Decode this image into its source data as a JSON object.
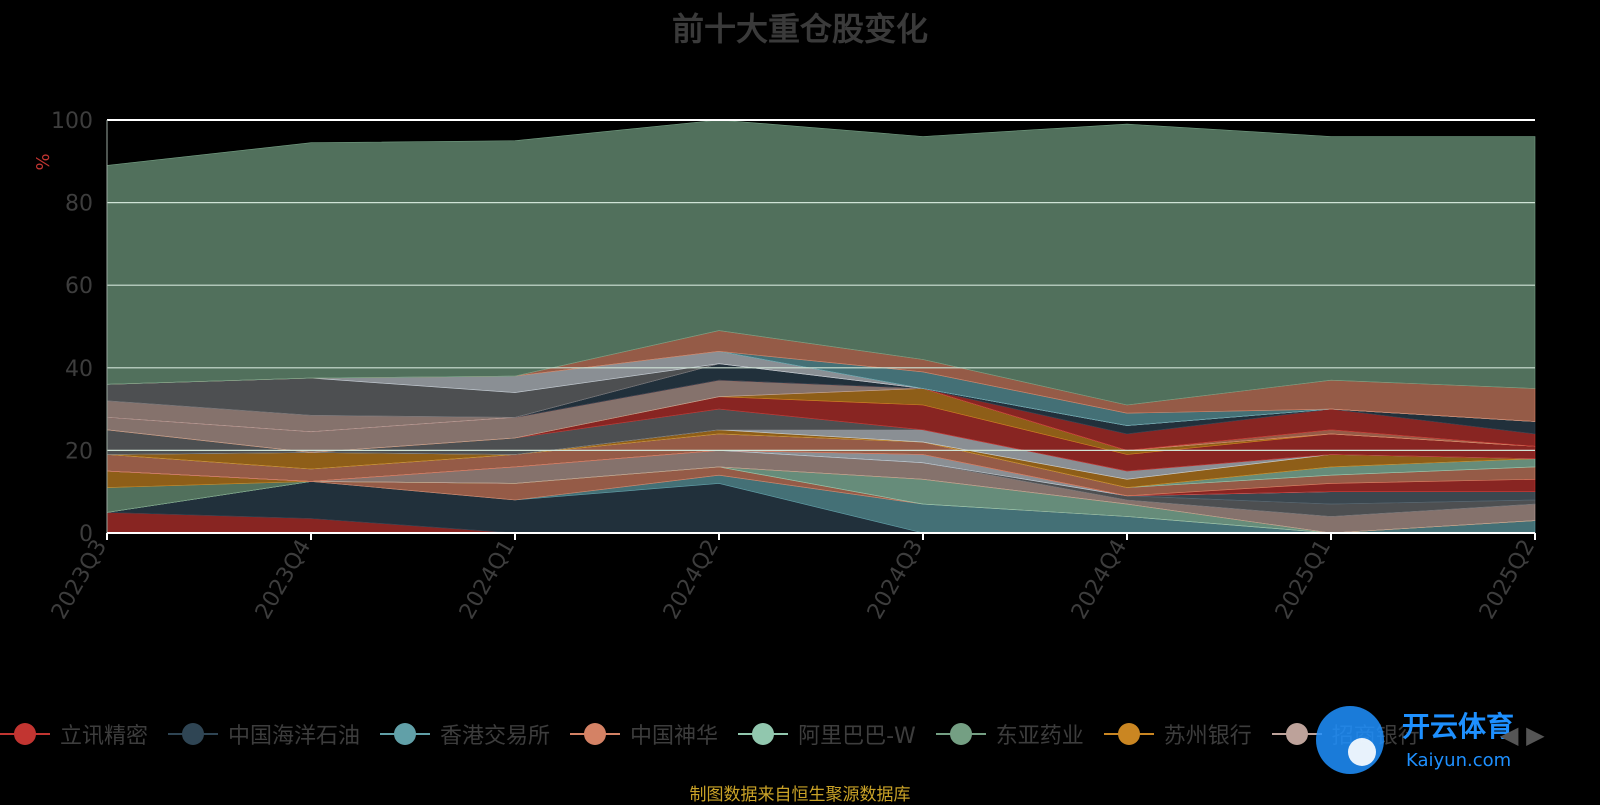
{
  "chart_data": {
    "type": "area",
    "stacked": true,
    "title": "前十大重仓股变化",
    "ylabel": "%",
    "ylim": [
      0,
      100
    ],
    "yticks": [
      0,
      20,
      40,
      60,
      80,
      100
    ],
    "grid": true,
    "legend_position": "bottom",
    "categories": [
      "2023Q3",
      "2023Q4",
      "2024Q1",
      "2024Q2",
      "2024Q3",
      "2024Q4",
      "2025Q1",
      "2025Q2"
    ],
    "series": [
      {
        "name": "立讯精密",
        "color": "#c23531",
        "values": [
          5,
          3.5,
          0,
          0,
          0,
          0,
          0,
          0
        ]
      },
      {
        "name": "中国海洋石油",
        "color": "#2f4554",
        "values": [
          0,
          9,
          8,
          12,
          0,
          0,
          0,
          0
        ]
      },
      {
        "name": "香港交易所",
        "color": "#61a0a8",
        "values": [
          0,
          0,
          0,
          2,
          7,
          4,
          0,
          3
        ]
      },
      {
        "name": "中国神华",
        "color": "#d48265",
        "values": [
          0,
          0,
          4,
          2,
          0,
          0,
          0,
          0
        ]
      },
      {
        "name": "阿里巴巴-W",
        "color": "#91c7ae",
        "values": [
          0,
          0,
          0,
          0,
          6,
          3,
          0,
          0
        ]
      },
      {
        "name": "东亚药业",
        "color": "#749f83",
        "values": [
          6,
          0,
          0,
          0,
          0,
          0,
          0,
          0
        ]
      },
      {
        "name": "苏州银行",
        "color": "#ca8622",
        "values": [
          4,
          0,
          0,
          0,
          0,
          0,
          0,
          0
        ]
      },
      {
        "name": "招商银行",
        "color": "#bda29a",
        "values": [
          0,
          0,
          4,
          4,
          4,
          1,
          4,
          4
        ]
      },
      {
        "name": "",
        "color": "#6e7074",
        "values": [
          0,
          0,
          0,
          0,
          0,
          1,
          3,
          1
        ]
      },
      {
        "name": "",
        "color": "#546570",
        "values": [
          0,
          0,
          0,
          0,
          0,
          0,
          3,
          2
        ]
      },
      {
        "name": "",
        "color": "#c4ccd3",
        "values": [
          0,
          0,
          0,
          0,
          2,
          0,
          0,
          0
        ]
      },
      {
        "name": "",
        "color": "#c23531",
        "values": [
          0,
          0,
          0,
          0,
          0,
          0,
          2,
          3
        ]
      },
      {
        "name": "",
        "color": "#d48265",
        "values": [
          4,
          3,
          3,
          4,
          3,
          2,
          2,
          3
        ]
      },
      {
        "name": "",
        "color": "#91c7ae",
        "values": [
          0,
          0,
          0,
          0,
          0,
          0,
          2,
          2
        ]
      },
      {
        "name": "",
        "color": "#ca8622",
        "values": [
          0,
          4,
          0,
          1,
          0,
          2,
          3,
          0
        ]
      },
      {
        "name": "",
        "color": "#c4ccd3",
        "values": [
          0,
          0,
          0,
          0,
          3,
          2,
          0,
          0
        ]
      },
      {
        "name": "",
        "color": "#6e7074",
        "values": [
          6,
          0,
          4,
          5,
          0,
          0,
          0,
          0
        ]
      },
      {
        "name": "",
        "color": "#c23531",
        "values": [
          0,
          0,
          0,
          3,
          6,
          4,
          5,
          3
        ]
      },
      {
        "name": "",
        "color": "#ca8622",
        "values": [
          0,
          0,
          0,
          0,
          4,
          1,
          0,
          0
        ]
      },
      {
        "name": "",
        "color": "#bda29a",
        "values": [
          3,
          5,
          5,
          4,
          0,
          0,
          0,
          0
        ]
      },
      {
        "name": "",
        "color": "#d48265",
        "values": [
          0,
          0,
          0,
          0,
          0,
          0,
          1,
          0
        ]
      },
      {
        "name": "",
        "color": "#c23531",
        "values": [
          0,
          0,
          0,
          0,
          0,
          4,
          5,
          3
        ]
      },
      {
        "name": "",
        "color": "#2f4554",
        "values": [
          0,
          0,
          0,
          4,
          0,
          2,
          0,
          3
        ]
      },
      {
        "name": "",
        "color": "#bda29a",
        "values": [
          4,
          4,
          0,
          0,
          0,
          0,
          0,
          0
        ]
      },
      {
        "name": "",
        "color": "#6e7074",
        "values": [
          4,
          9,
          6,
          0,
          0,
          0,
          0,
          0
        ]
      },
      {
        "name": "",
        "color": "#c4ccd3",
        "values": [
          0,
          0,
          4,
          3,
          0,
          0,
          0,
          0
        ]
      },
      {
        "name": "",
        "color": "#61a0a8",
        "values": [
          0,
          0,
          0,
          0,
          4,
          3,
          0,
          0
        ]
      },
      {
        "name": "",
        "color": "#d48265",
        "values": [
          0,
          0,
          0,
          5,
          3,
          2,
          7,
          8
        ]
      },
      {
        "name": "",
        "color": "#749f83",
        "values": [
          53,
          57,
          57,
          51,
          54,
          68,
          59,
          61
        ]
      }
    ],
    "source_note": "制图数据来自恒生聚源数据库"
  },
  "watermark": {
    "cn": "开云体育",
    "en": "Kaiyun.com"
  },
  "pager": {
    "prev": "◀",
    "next": "▶"
  }
}
